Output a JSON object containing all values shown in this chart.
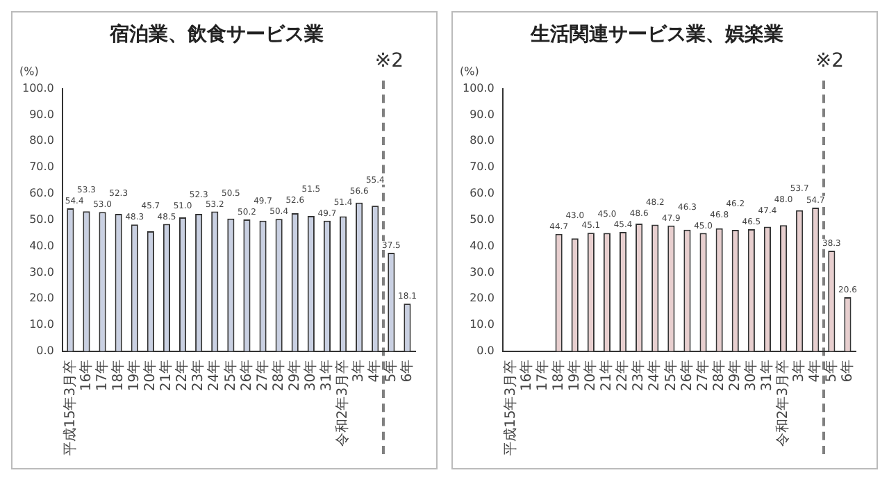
{
  "chart_data": [
    {
      "type": "bar",
      "title": "宿泊業、飲食サービス業",
      "ylabel": "(%)",
      "categories": [
        "平成15年3月卒",
        "16年",
        "17年",
        "18年",
        "19年",
        "20年",
        "21年",
        "22年",
        "23年",
        "24年",
        "25年",
        "26年",
        "27年",
        "28年",
        "29年",
        "30年",
        "31年",
        "令和2年3月卒",
        "3年",
        "4年",
        "5年",
        "6年"
      ],
      "series": [
        {
          "color": "#c9d0e2",
          "values": [
            54.4,
            53.3,
            53.0,
            52.3,
            48.3,
            45.7,
            48.5,
            51.0,
            52.3,
            53.2,
            50.5,
            50.2,
            49.7,
            50.4,
            52.6,
            51.5,
            49.7,
            51.4,
            56.6,
            55.4,
            37.5,
            18.1
          ],
          "value_labels": [
            "54.4",
            "53.3",
            "53.0",
            "52.3",
            "48.3",
            "45.7",
            "48.5",
            "51.0",
            "52.3",
            "53.2",
            "50.5",
            "50.2",
            "49.7",
            "50.4",
            "52.6",
            "51.5",
            "49.7",
            "51.4",
            "56.6",
            "55.4",
            "37.5",
            "18.1"
          ]
        }
      ],
      "ylim": [
        0,
        100
      ],
      "yticks": [
        {
          "value": 0,
          "label": "0.0"
        },
        {
          "value": 10,
          "label": "10.0"
        },
        {
          "value": 20,
          "label": "20.0"
        },
        {
          "value": 30,
          "label": "30.0"
        },
        {
          "value": 40,
          "label": "40.0"
        },
        {
          "value": 50,
          "label": "50.0"
        },
        {
          "value": 60,
          "label": "60.0"
        },
        {
          "value": 70,
          "label": "70.0"
        },
        {
          "value": 80,
          "label": "80.0"
        },
        {
          "value": 90,
          "label": "90.0"
        },
        {
          "value": 100,
          "label": "100.0"
        }
      ],
      "grid": false,
      "legend": false,
      "annotations": [
        "※2"
      ]
    },
    {
      "type": "bar",
      "title": "生活関連サービス業、娯楽業",
      "ylabel": "(%)",
      "categories": [
        "平成15年3月卒",
        "16年",
        "17年",
        "18年",
        "19年",
        "20年",
        "21年",
        "22年",
        "23年",
        "24年",
        "25年",
        "26年",
        "27年",
        "28年",
        "29年",
        "30年",
        "31年",
        "令和2年3月卒",
        "3年",
        "4年",
        "5年",
        "6年"
      ],
      "series": [
        {
          "color": "#e8cfcf",
          "values": [
            null,
            null,
            null,
            44.7,
            43.0,
            45.1,
            45.0,
            45.4,
            48.6,
            48.2,
            47.9,
            46.3,
            45.0,
            46.8,
            46.2,
            46.5,
            47.4,
            48.0,
            53.7,
            54.7,
            38.3,
            20.6
          ],
          "value_labels": [
            null,
            null,
            null,
            "44.7",
            "43.0",
            "45.1",
            "45.0",
            "45.4",
            "48.6",
            "48.2",
            "47.9",
            "46.3",
            "45.0",
            "46.8",
            "46.2",
            "46.5",
            "47.4",
            "48.0",
            "53.7",
            "54.7",
            "38.3",
            "20.6"
          ]
        }
      ],
      "ylim": [
        0,
        100
      ],
      "yticks": [
        {
          "value": 0,
          "label": "0.0"
        },
        {
          "value": 10,
          "label": "10.0"
        },
        {
          "value": 20,
          "label": "20.0"
        },
        {
          "value": 30,
          "label": "30.0"
        },
        {
          "value": 40,
          "label": "40.0"
        },
        {
          "value": 50,
          "label": "50.0"
        },
        {
          "value": 60,
          "label": "60.0"
        },
        {
          "value": 70,
          "label": "70.0"
        },
        {
          "value": 80,
          "label": "80.0"
        },
        {
          "value": 90,
          "label": "90.0"
        },
        {
          "value": 100,
          "label": "100.0"
        }
      ],
      "grid": false,
      "legend": false,
      "annotations": [
        "※2"
      ]
    }
  ]
}
